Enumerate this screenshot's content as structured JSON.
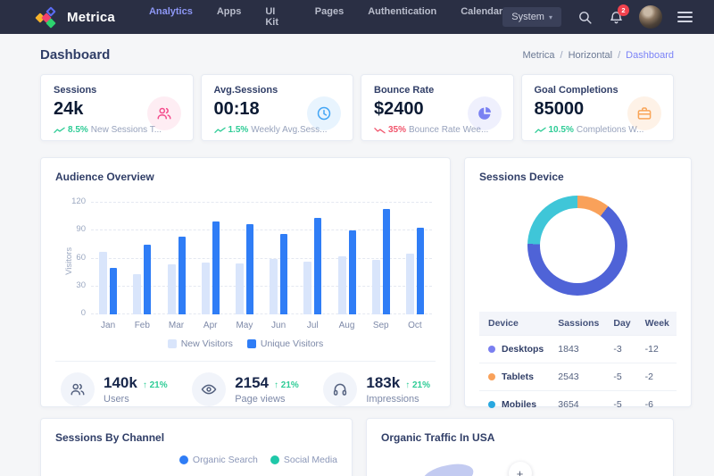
{
  "brand": {
    "name": "Metrica"
  },
  "nav": {
    "items": [
      {
        "label": "Analytics",
        "active": true
      },
      {
        "label": "Apps",
        "active": false
      },
      {
        "label": "UI Kit",
        "active": false
      },
      {
        "label": "Pages",
        "active": false
      },
      {
        "label": "Authentication",
        "active": false
      },
      {
        "label": "Calendar",
        "active": false
      }
    ],
    "system_label": "System"
  },
  "notifications": {
    "badge": "2"
  },
  "page": {
    "title": "Dashboard",
    "breadcrumb": [
      "Metrica",
      "Horizontal",
      "Dashboard"
    ]
  },
  "stat_cards": [
    {
      "title": "Sessions",
      "value": "24k",
      "delta": "8.5%",
      "direction": "up",
      "desc": "New Sessions T...",
      "icon": "users-icon",
      "accent": "#f44c8c",
      "tint": "rgba(244,76,140,0.10)",
      "delta_color": "#2ecc96"
    },
    {
      "title": "Avg.Sessions",
      "value": "00:18",
      "delta": "1.5%",
      "direction": "up",
      "desc": "Weekly Avg.Sess...",
      "icon": "clock-icon",
      "accent": "#42a5f5",
      "tint": "rgba(66,165,245,0.12)",
      "delta_color": "#2ecc96"
    },
    {
      "title": "Bounce Rate",
      "value": "$2400",
      "delta": "35%",
      "direction": "down",
      "desc": "Bounce Rate Wee...",
      "icon": "pie-icon",
      "accent": "#7a81f2",
      "tint": "rgba(122,129,242,0.12)",
      "delta_color": "#f1556c"
    },
    {
      "title": "Goal Completions",
      "value": "85000",
      "delta": "10.5%",
      "direction": "up",
      "desc": "Completions W...",
      "icon": "briefcase-icon",
      "accent": "#f9a558",
      "tint": "rgba(249,165,88,0.14)",
      "delta_color": "#2ecc96"
    }
  ],
  "audience": {
    "title": "Audience Overview",
    "chart_data": {
      "type": "bar",
      "categories": [
        "Jan",
        "Feb",
        "Mar",
        "Apr",
        "May",
        "Jun",
        "Jul",
        "Aug",
        "Sep",
        "Oct"
      ],
      "series": [
        {
          "name": "New Visitors",
          "color": "#d9e5fb",
          "values": [
            67,
            43,
            54,
            56,
            55,
            60,
            57,
            62,
            59,
            65
          ]
        },
        {
          "name": "Unique Visitors",
          "color": "#2f7df6",
          "values": [
            50,
            75,
            84,
            100,
            97,
            86,
            104,
            90,
            113,
            93
          ]
        }
      ],
      "ylabel": "Visitors",
      "ylim": [
        0,
        120
      ],
      "yticks": [
        0,
        30,
        60,
        90,
        120
      ],
      "grid": "dashed-horizontal",
      "legend_position": "bottom"
    },
    "stats": [
      {
        "value": "140k",
        "arrow": "↑",
        "delta": "21%",
        "label": "Users",
        "icon": "users-icon"
      },
      {
        "value": "2154",
        "arrow": "↑",
        "delta": "21%",
        "label": "Page views",
        "icon": "eye-icon"
      },
      {
        "value": "183k",
        "arrow": "↑",
        "delta": "21%",
        "label": "Impressions",
        "icon": "headphones-icon"
      }
    ]
  },
  "sessions_device": {
    "title": "Sessions Device",
    "chart_data": {
      "type": "pie",
      "donut": true,
      "segments": [
        {
          "label": "Tablets",
          "deg": 38,
          "color": "#f9a15a"
        },
        {
          "label": "Desktops",
          "deg": 234,
          "color": "#4f63d7"
        },
        {
          "label": "Mobiles",
          "deg": 88,
          "color": "#3fc6d8"
        }
      ]
    },
    "table": {
      "headers": [
        "Device",
        "Sassions",
        "Day",
        "Week"
      ],
      "rows": [
        {
          "device": "Desktops",
          "dot_color": "#7a7ff0",
          "sassions": "1843",
          "day": "-3",
          "week": "-12"
        },
        {
          "device": "Tablets",
          "dot_color": "#f9a15a",
          "sassions": "2543",
          "day": "-5",
          "week": "-2"
        },
        {
          "device": "Mobiles",
          "dot_color": "#29a8e0",
          "sassions": "3654",
          "day": "-5",
          "week": "-6"
        }
      ]
    }
  },
  "sessions_by_channel": {
    "title": "Sessions By Channel",
    "legend": [
      {
        "label": "Organic Search",
        "color": "#2f7df6"
      },
      {
        "label": "Social Media",
        "color": "#1fc8a9"
      }
    ]
  },
  "organic_traffic": {
    "title": "Organic Traffic In USA",
    "zoom_in_label": "+"
  }
}
